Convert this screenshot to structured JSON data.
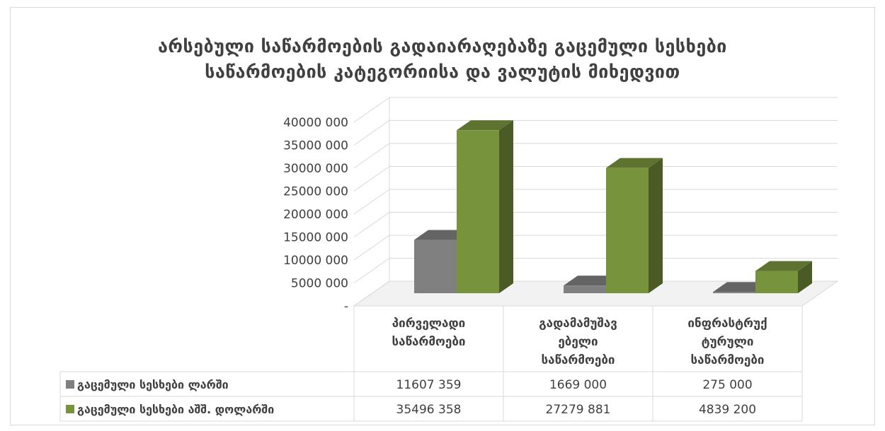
{
  "chart_data": {
    "type": "bar",
    "title_lines": [
      "არსებული საწარმოების გადაიარაღებაზე გაცემული სესხები",
      "საწარმოების კატეგორიისა და ვალუტის მიხედვით"
    ],
    "categories": [
      [
        "პირველადი",
        "საწარმოები"
      ],
      [
        "გადამამუშავ",
        "ებელი",
        "საწარმოები"
      ],
      [
        "ინფრასტრუქ",
        "ტურული",
        "საწარმოები"
      ]
    ],
    "series": [
      {
        "name": "გაცემული სესხები ლარში",
        "values": [
          11607359,
          1669000,
          275000
        ],
        "labels": [
          "11607 359",
          "1669 000",
          "275 000"
        ],
        "color": "#808080"
      },
      {
        "name": "გაცემული სესხები აშშ. დოლარში",
        "values": [
          35496358,
          27279881,
          4839200
        ],
        "labels": [
          "35496 358",
          "27279 881",
          "4839 200"
        ],
        "color": "#77933c"
      }
    ],
    "ylim": [
      0,
      40000000
    ],
    "y_ticks": [
      {
        "value": 0,
        "label": "-"
      },
      {
        "value": 5000000,
        "label": "5000 000"
      },
      {
        "value": 10000000,
        "label": "10000 000"
      },
      {
        "value": 15000000,
        "label": "15000 000"
      },
      {
        "value": 20000000,
        "label": "20000 000"
      },
      {
        "value": 25000000,
        "label": "25000 000"
      },
      {
        "value": 30000000,
        "label": "30000 000"
      },
      {
        "value": 35000000,
        "label": "35000 000"
      },
      {
        "value": 40000000,
        "label": "40000 000"
      }
    ],
    "grid": true,
    "legend": "data-table"
  }
}
